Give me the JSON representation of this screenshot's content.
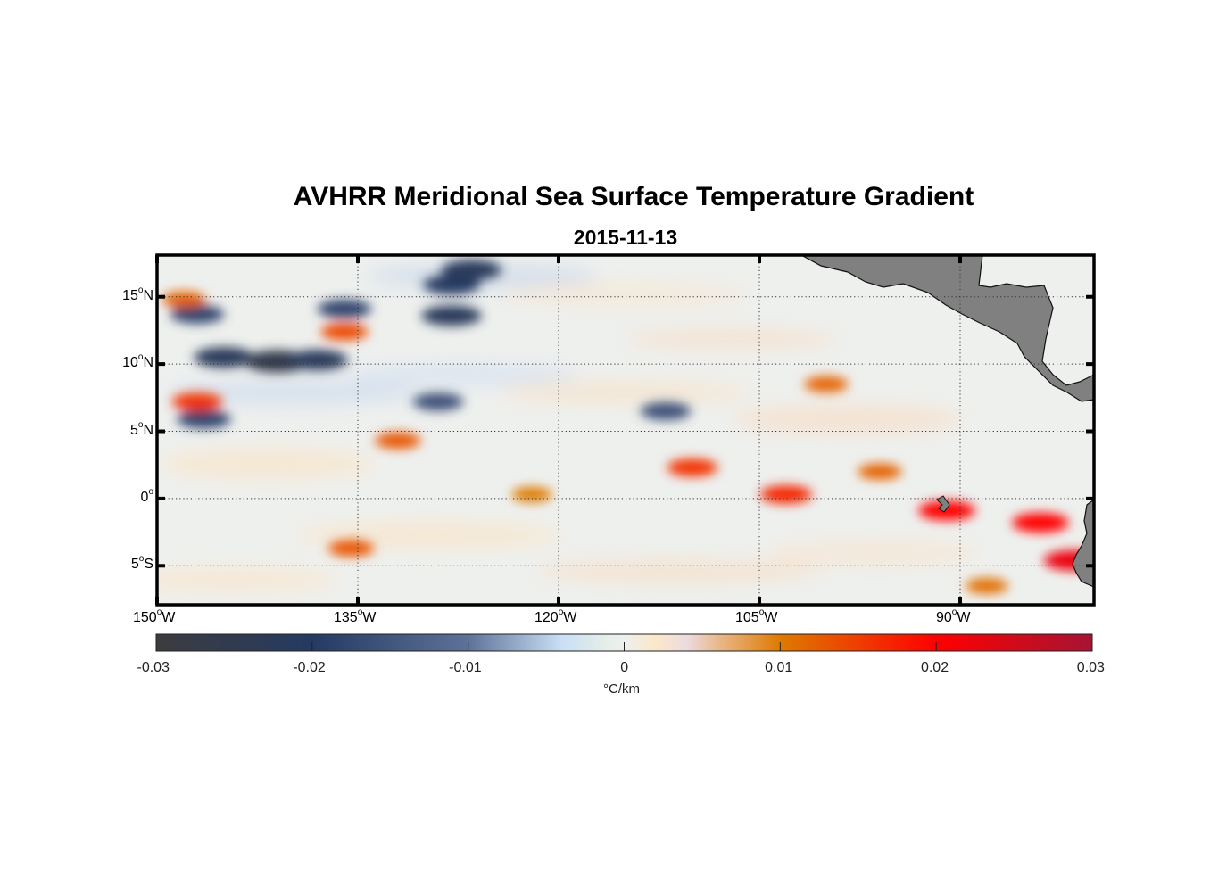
{
  "chart_data": {
    "type": "heatmap",
    "title": "AVHRR Meridional Sea Surface Temperature Gradient",
    "subtitle": "2015-11-13",
    "map_extent": {
      "lon_min": -150,
      "lon_max": -80,
      "lat_min": -7.9,
      "lat_max": 18.1
    },
    "x_ticks": [
      {
        "value": -150,
        "num": "150",
        "deg": "o",
        "hemi": "W"
      },
      {
        "value": -135,
        "num": "135",
        "deg": "o",
        "hemi": "W"
      },
      {
        "value": -120,
        "num": "120",
        "deg": "o",
        "hemi": "W"
      },
      {
        "value": -105,
        "num": "105",
        "deg": "o",
        "hemi": "W"
      },
      {
        "value": -90,
        "num": "90",
        "deg": "o",
        "hemi": "W"
      }
    ],
    "y_ticks": [
      {
        "value": 15,
        "num": "15",
        "deg": "o",
        "hemi": "N"
      },
      {
        "value": 10,
        "num": "10",
        "deg": "o",
        "hemi": "N"
      },
      {
        "value": 5,
        "num": "5",
        "deg": "o",
        "hemi": "N"
      },
      {
        "value": 0,
        "num": "0",
        "deg": "o",
        "hemi": ""
      },
      {
        "value": -5,
        "num": "5",
        "deg": "o",
        "hemi": "S"
      }
    ],
    "grid": "dotted",
    "colorbar": {
      "range": [
        -0.03,
        0.03
      ],
      "ticks": [
        -0.03,
        -0.02,
        -0.01,
        0,
        0.01,
        0.02,
        0.03
      ],
      "tick_labels": [
        "-0.03",
        "-0.02",
        "-0.01",
        "0",
        "0.01",
        "0.02",
        "0.03"
      ],
      "label": "°C/km",
      "placement": "bottom",
      "stops": [
        {
          "v": -0.03,
          "color": "#3c3c3e"
        },
        {
          "v": -0.02,
          "color": "#253a62"
        },
        {
          "v": -0.01,
          "color": "#5e7299"
        },
        {
          "v": -0.004,
          "color": "#cadff5"
        },
        {
          "v": -0.001,
          "color": "#e6efe8"
        },
        {
          "v": 0,
          "color": "#efefef"
        },
        {
          "v": 0.002,
          "color": "#fbe8c8"
        },
        {
          "v": 0.004,
          "color": "#ecdbe0"
        },
        {
          "v": 0.006,
          "color": "#e9b98c"
        },
        {
          "v": 0.01,
          "color": "#de7a00"
        },
        {
          "v": 0.02,
          "color": "#ff0000"
        },
        {
          "v": 0.03,
          "color": "#a51434"
        }
      ]
    },
    "features": [
      {
        "name": "neg-band-10N-west",
        "lon": -145,
        "lat": 10.5,
        "value": -0.022
      },
      {
        "name": "neg-blob-141W-11N",
        "lon": -141,
        "lat": 10.2,
        "value": -0.026
      },
      {
        "name": "neg-blob-138W-10N",
        "lon": -138,
        "lat": 10.3,
        "value": -0.022
      },
      {
        "name": "neg-blob-128W-15N",
        "lon": -128,
        "lat": 15.9,
        "value": -0.02
      },
      {
        "name": "neg-blob-126W-17N",
        "lon": -126.5,
        "lat": 17.0,
        "value": -0.022
      },
      {
        "name": "neg-blob-128W-14N",
        "lon": -128,
        "lat": 13.6,
        "value": -0.022
      },
      {
        "name": "neg-blob-136W-14N",
        "lon": -136,
        "lat": 14.1,
        "value": -0.018
      },
      {
        "name": "neg-blob-147W-14N",
        "lon": -147,
        "lat": 13.7,
        "value": -0.018
      },
      {
        "name": "neg-blob-146W-6N",
        "lon": -146.5,
        "lat": 5.9,
        "value": -0.018
      },
      {
        "name": "neg-blob-129W-7N",
        "lon": -129,
        "lat": 7.2,
        "value": -0.016
      },
      {
        "name": "neg-blob-112W-6N",
        "lon": -112,
        "lat": 6.5,
        "value": -0.016
      },
      {
        "name": "pos-blob-148W-15N",
        "lon": -148,
        "lat": 14.8,
        "value": 0.012
      },
      {
        "name": "pos-blob-136W-12N",
        "lon": -136,
        "lat": 12.4,
        "value": 0.014
      },
      {
        "name": "pos-blob-147W-7N",
        "lon": -147,
        "lat": 7.2,
        "value": 0.016
      },
      {
        "name": "pos-blob-132W-4N",
        "lon": -132,
        "lat": 4.3,
        "value": 0.013
      },
      {
        "name": "pos-blob-135W-4S",
        "lon": -135.5,
        "lat": -3.7,
        "value": 0.013
      },
      {
        "name": "pos-blob-122W-1N",
        "lon": -122,
        "lat": 0.3,
        "value": 0.01
      },
      {
        "name": "pos-band-106W-0N",
        "lon": -103,
        "lat": 0.3,
        "value": 0.017
      },
      {
        "name": "pos-band-93W-2N",
        "lon": -96,
        "lat": 2.0,
        "value": 0.012
      },
      {
        "name": "pos-blob-91W-1S",
        "lon": -91,
        "lat": -0.9,
        "value": 0.02
      },
      {
        "name": "pos-band-84W-2S",
        "lon": -84,
        "lat": -1.8,
        "value": 0.02
      },
      {
        "name": "pos-blob-82W-4S",
        "lon": -81.5,
        "lat": -4.6,
        "value": 0.022
      },
      {
        "name": "pos-band-100W-9N",
        "lon": -100,
        "lat": 8.5,
        "value": 0.012
      },
      {
        "name": "pos-blob-110W-2N",
        "lon": -110,
        "lat": 2.3,
        "value": 0.016
      },
      {
        "name": "pos-blob-88W-6S",
        "lon": -88,
        "lat": -6.5,
        "value": 0.011
      }
    ],
    "land": [
      "Central America",
      "Galápagos Islands",
      "South America coast"
    ]
  }
}
